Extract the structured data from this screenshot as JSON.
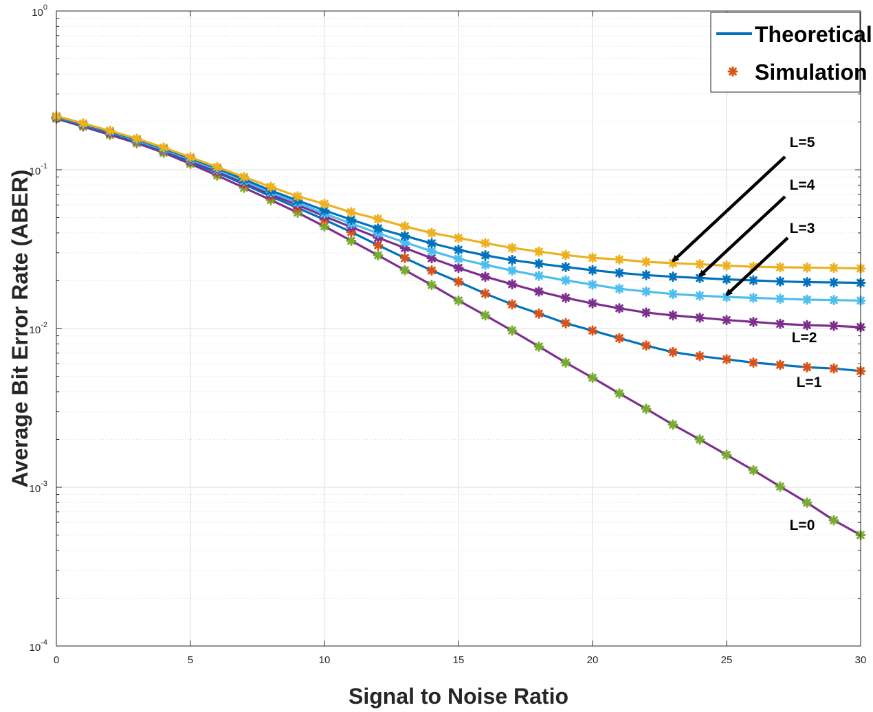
{
  "chart_data": {
    "type": "line",
    "title": "",
    "xlabel": "Signal to Noise Ratio",
    "ylabel": "Average Bit Error Rate (ABER)",
    "xlim": [
      0,
      30
    ],
    "ylim": [
      0.0001,
      1
    ],
    "yscale": "log",
    "grid": true,
    "legend_position": "top-right",
    "x_ticks": [
      "0",
      "5",
      "10",
      "15",
      "20",
      "25",
      "30"
    ],
    "y_ticks": [
      {
        "base": "10",
        "exp": "0",
        "value": 1
      },
      {
        "base": "10",
        "exp": "-1",
        "value": 0.1
      },
      {
        "base": "10",
        "exp": "-2",
        "value": 0.01
      },
      {
        "base": "10",
        "exp": "-3",
        "value": 0.001
      },
      {
        "base": "10",
        "exp": "-4",
        "value": 0.0001
      }
    ],
    "legend": [
      {
        "label": "Theoretical",
        "kind": "line",
        "color": "#0072BD"
      },
      {
        "label": "Simulation",
        "kind": "marker",
        "color": "#D95319"
      }
    ],
    "x": [
      0,
      1,
      2,
      3,
      4,
      5,
      6,
      7,
      8,
      9,
      10,
      11,
      12,
      13,
      14,
      15,
      16,
      17,
      18,
      19,
      20,
      21,
      22,
      23,
      24,
      25,
      26,
      27,
      28,
      29,
      30
    ],
    "series": [
      {
        "name": "L=0",
        "line_color": "#7E2F8E",
        "marker_color": "#77AC30",
        "values": [
          0.21,
          0.187,
          0.166,
          0.147,
          0.128,
          0.109,
          0.092,
          0.077,
          0.0645,
          0.0537,
          0.044,
          0.0357,
          0.0289,
          0.0233,
          0.0188,
          0.015,
          0.0121,
          0.0097,
          0.0077,
          0.0061,
          0.0049,
          0.0039,
          0.00312,
          0.00248,
          0.002,
          0.0016,
          0.00128,
          0.00101,
          0.0008,
          0.00062,
          0.0005
        ]
      },
      {
        "name": "L=1",
        "line_color": "#0072BD",
        "marker_color": "#D95319",
        "values": [
          0.212,
          0.19,
          0.169,
          0.15,
          0.131,
          0.112,
          0.096,
          0.081,
          0.068,
          0.0575,
          0.0485,
          0.0405,
          0.0335,
          0.0278,
          0.0232,
          0.0197,
          0.0166,
          0.0142,
          0.0124,
          0.0108,
          0.0097,
          0.0087,
          0.0078,
          0.0071,
          0.0067,
          0.0064,
          0.0061,
          0.0059,
          0.0057,
          0.0056,
          0.0054
        ]
      },
      {
        "name": "L=2",
        "line_color": "#7E2F8E",
        "marker_color": "#7E2F8E",
        "values": [
          0.214,
          0.192,
          0.171,
          0.152,
          0.133,
          0.114,
          0.098,
          0.083,
          0.07,
          0.06,
          0.051,
          0.0435,
          0.0373,
          0.0322,
          0.0277,
          0.0241,
          0.0212,
          0.019,
          0.0171,
          0.0156,
          0.0144,
          0.0134,
          0.0126,
          0.0121,
          0.0117,
          0.0113,
          0.011,
          0.0107,
          0.0105,
          0.0104,
          0.0102
        ]
      },
      {
        "name": "L=3",
        "line_color": "#4DBEEE",
        "marker_color": "#4DBEEE",
        "values": [
          0.215,
          0.193,
          0.173,
          0.153,
          0.134,
          0.116,
          0.1,
          0.085,
          0.072,
          0.062,
          0.053,
          0.0458,
          0.0398,
          0.0349,
          0.0307,
          0.0275,
          0.0252,
          0.0232,
          0.0215,
          0.0201,
          0.0189,
          0.0178,
          0.0171,
          0.0165,
          0.0161,
          0.0158,
          0.0156,
          0.0154,
          0.0152,
          0.0151,
          0.015
        ]
      },
      {
        "name": "L=4",
        "line_color": "#0072BD",
        "marker_color": "#0072BD",
        "values": [
          0.216,
          0.194,
          0.174,
          0.155,
          0.136,
          0.118,
          0.102,
          0.087,
          0.074,
          0.064,
          0.0555,
          0.0485,
          0.0427,
          0.0383,
          0.0344,
          0.0313,
          0.0289,
          0.027,
          0.0256,
          0.0244,
          0.0233,
          0.0224,
          0.0217,
          0.0212,
          0.0208,
          0.0204,
          0.0201,
          0.0198,
          0.0196,
          0.0195,
          0.0194
        ]
      },
      {
        "name": "L=5",
        "line_color": "#EDB120",
        "marker_color": "#EDB120",
        "values": [
          0.218,
          0.196,
          0.176,
          0.157,
          0.138,
          0.12,
          0.104,
          0.09,
          0.078,
          0.068,
          0.061,
          0.054,
          0.049,
          0.044,
          0.04,
          0.0372,
          0.0345,
          0.0322,
          0.0305,
          0.029,
          0.0279,
          0.0272,
          0.0263,
          0.0258,
          0.0254,
          0.0249,
          0.0245,
          0.0243,
          0.0242,
          0.0241,
          0.0239
        ]
      }
    ],
    "annotations": [
      {
        "text": "L=5",
        "arrow_to": [
          23,
          0.0258
        ]
      },
      {
        "text": "L=4",
        "arrow_to": [
          24,
          0.0208
        ]
      },
      {
        "text": "L=3",
        "arrow_to": [
          25,
          0.0158
        ]
      },
      {
        "text": "L=2",
        "arrow_to": null
      },
      {
        "text": "L=1",
        "arrow_to": null
      },
      {
        "text": "L=0",
        "arrow_to": null
      }
    ]
  }
}
